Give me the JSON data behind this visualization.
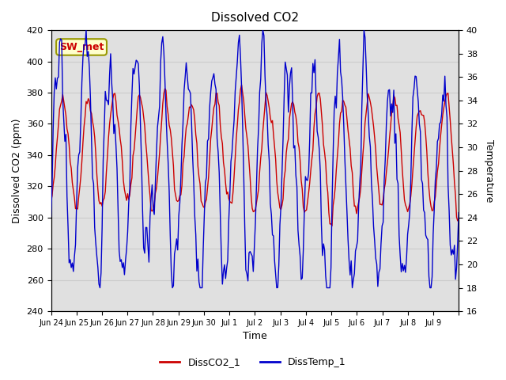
{
  "title": "Dissolved CO2",
  "xlabel": "Time",
  "ylabel_left": "Dissolved CO2 (ppm)",
  "ylabel_right": "Temperature",
  "left_ylim": [
    240,
    420
  ],
  "right_ylim": [
    16,
    40
  ],
  "left_yticks": [
    240,
    260,
    280,
    300,
    320,
    340,
    360,
    380,
    400,
    420
  ],
  "right_yticks": [
    16,
    18,
    20,
    22,
    24,
    26,
    28,
    30,
    32,
    34,
    36,
    38,
    40
  ],
  "xtick_positions": [
    0,
    1,
    2,
    3,
    4,
    5,
    6,
    7,
    8,
    9,
    10,
    11,
    12,
    13,
    14,
    15,
    16
  ],
  "xtick_labels": [
    "Jun 24",
    "Jun 25",
    "Jun 26",
    "Jun 27",
    "Jun 28",
    "Jun 29",
    "Jun 30",
    "Jul 1",
    "Jul 2",
    "Jul 3",
    "Jul 4",
    "Jul 5",
    "Jul 6",
    "Jul 7",
    "Jul 8",
    "Jul 9",
    ""
  ],
  "color_co2": "#cc0000",
  "color_temp": "#0000cc",
  "legend_labels": [
    "DissCO2_1",
    "DissTemp_1"
  ],
  "annotation_text": "SW_met",
  "annotation_color": "#cc0000",
  "annotation_bg": "#ffffcc",
  "annotation_border": "#999900",
  "grid_color": "#cccccc",
  "bg_color": "#e0e0e0",
  "title_fontsize": 11
}
